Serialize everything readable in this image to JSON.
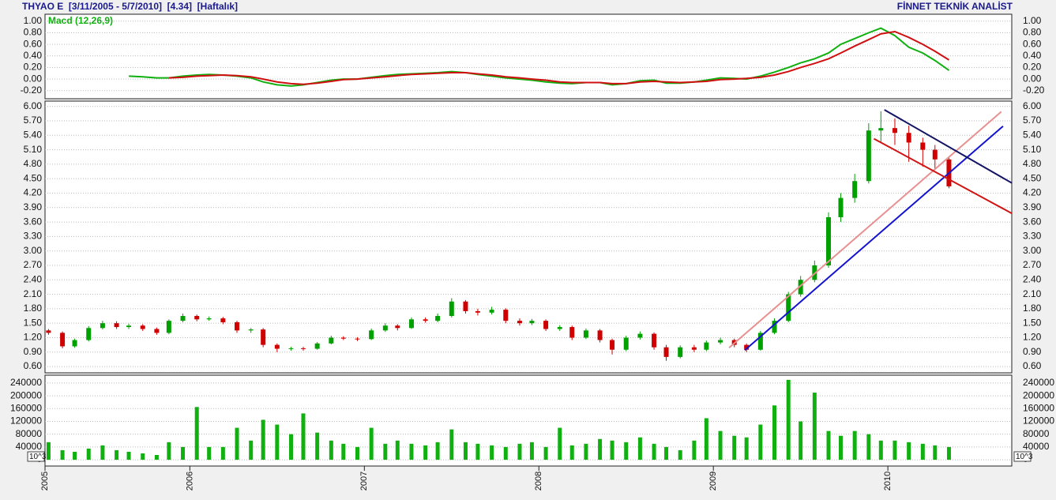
{
  "chart_data": {
    "type": "candlestick",
    "title": "THYAO E  [3/11/2005 - 5/7/2010]  [4.34]  [Haftalık]",
    "source": "FİNNET TEKNİK ANALİST",
    "xlim": [
      2005.17,
      2010.71
    ],
    "xticks": [
      {
        "value": 2005.17,
        "label": "2005"
      },
      2006,
      2007,
      2008,
      2009,
      2010
    ],
    "x": [
      2005.19,
      2005.27,
      2005.34,
      2005.42,
      2005.5,
      2005.58,
      2005.65,
      2005.73,
      2005.81,
      2005.88,
      2005.96,
      2006.04,
      2006.11,
      2006.19,
      2006.27,
      2006.35,
      2006.42,
      2006.5,
      2006.58,
      2006.65,
      2006.73,
      2006.81,
      2006.88,
      2006.96,
      2007.04,
      2007.12,
      2007.19,
      2007.27,
      2007.35,
      2007.42,
      2007.5,
      2007.58,
      2007.65,
      2007.73,
      2007.81,
      2007.89,
      2007.96,
      2008.04,
      2008.12,
      2008.19,
      2008.27,
      2008.35,
      2008.42,
      2008.5,
      2008.58,
      2008.66,
      2008.73,
      2008.81,
      2008.89,
      2008.96,
      2009.04,
      2009.12,
      2009.19,
      2009.27,
      2009.35,
      2009.43,
      2009.5,
      2009.58,
      2009.66,
      2009.73,
      2009.81,
      2009.89,
      2009.96,
      2010.04,
      2010.12,
      2010.2,
      2010.27,
      2010.35
    ],
    "open": [
      1.35,
      1.3,
      1.02,
      1.15,
      1.4,
      1.5,
      1.42,
      1.45,
      1.38,
      1.3,
      1.55,
      1.65,
      1.58,
      1.6,
      1.52,
      1.35,
      1.37,
      1.05,
      0.97,
      0.98,
      0.97,
      1.08,
      1.2,
      1.18,
      1.17,
      1.35,
      1.45,
      1.4,
      1.58,
      1.55,
      1.65,
      1.95,
      1.75,
      1.72,
      1.78,
      1.55,
      1.5,
      1.55,
      1.38,
      1.42,
      1.2,
      1.35,
      1.15,
      0.95,
      1.2,
      1.28,
      1.0,
      0.8,
      1.0,
      0.95,
      1.1,
      1.15,
      1.05,
      0.95,
      1.3,
      1.55,
      2.1,
      2.4,
      2.7,
      3.7,
      4.1,
      4.45,
      5.5,
      5.55,
      5.45,
      5.25,
      5.1,
      4.9
    ],
    "high": [
      1.38,
      1.33,
      1.18,
      1.44,
      1.55,
      1.54,
      1.49,
      1.48,
      1.41,
      1.58,
      1.7,
      1.68,
      1.64,
      1.63,
      1.55,
      1.4,
      1.4,
      1.08,
      1.01,
      1.01,
      1.11,
      1.24,
      1.23,
      1.21,
      1.39,
      1.5,
      1.48,
      1.62,
      1.62,
      1.7,
      2.02,
      1.98,
      1.8,
      1.84,
      1.81,
      1.6,
      1.59,
      1.58,
      1.46,
      1.45,
      1.39,
      1.38,
      1.18,
      1.24,
      1.33,
      1.31,
      1.05,
      1.04,
      1.05,
      1.14,
      1.2,
      1.18,
      1.08,
      1.34,
      1.6,
      2.15,
      2.48,
      2.8,
      3.8,
      4.2,
      4.6,
      5.65,
      5.9,
      5.75,
      5.6,
      5.35,
      5.2,
      4.95
    ],
    "low": [
      1.26,
      0.98,
      0.99,
      1.12,
      1.37,
      1.38,
      1.38,
      1.34,
      1.26,
      1.27,
      1.52,
      1.54,
      1.55,
      1.48,
      1.3,
      1.3,
      1.0,
      0.9,
      0.93,
      0.93,
      0.95,
      1.06,
      1.15,
      1.13,
      1.15,
      1.32,
      1.35,
      1.38,
      1.51,
      1.52,
      1.62,
      1.7,
      1.66,
      1.68,
      1.5,
      1.45,
      1.46,
      1.34,
      1.34,
      1.15,
      1.17,
      1.1,
      0.85,
      0.92,
      1.16,
      0.95,
      0.72,
      0.77,
      0.9,
      0.92,
      1.06,
      1.0,
      0.9,
      0.93,
      1.27,
      1.52,
      2.05,
      2.35,
      2.65,
      3.6,
      4.0,
      4.4,
      5.25,
      5.2,
      4.85,
      4.75,
      4.7,
      4.3
    ],
    "close": [
      1.3,
      1.02,
      1.15,
      1.4,
      1.5,
      1.42,
      1.45,
      1.38,
      1.3,
      1.55,
      1.65,
      1.58,
      1.6,
      1.52,
      1.35,
      1.37,
      1.05,
      0.97,
      0.98,
      0.97,
      1.08,
      1.2,
      1.18,
      1.17,
      1.35,
      1.45,
      1.4,
      1.58,
      1.55,
      1.65,
      1.95,
      1.75,
      1.72,
      1.78,
      1.55,
      1.5,
      1.55,
      1.38,
      1.42,
      1.2,
      1.35,
      1.15,
      0.95,
      1.2,
      1.28,
      1.0,
      0.8,
      1.0,
      0.95,
      1.1,
      1.15,
      1.05,
      0.95,
      1.3,
      1.55,
      2.1,
      2.4,
      2.7,
      3.7,
      4.1,
      4.45,
      5.5,
      5.55,
      5.45,
      5.25,
      5.1,
      4.9,
      4.34
    ],
    "up_color": "#00a000",
    "down_color": "#d00000",
    "ylim": [
      0.47,
      6.11
    ],
    "yticks": [
      {
        "value": 0.6,
        "label": "0.60"
      },
      {
        "value": 0.9,
        "label": "0.90"
      },
      {
        "value": 1.2,
        "label": "1.20"
      },
      {
        "value": 1.5,
        "label": "1.50"
      },
      {
        "value": 1.8,
        "label": "1.80"
      },
      {
        "value": 2.1,
        "label": "2.10"
      },
      {
        "value": 2.4,
        "label": "2.40"
      },
      {
        "value": 2.7,
        "label": "2.70"
      },
      {
        "value": 3.0,
        "label": "3.00"
      },
      {
        "value": 3.3,
        "label": "3.30"
      },
      {
        "value": 3.6,
        "label": "3.60"
      },
      {
        "value": 3.9,
        "label": "3.90"
      },
      {
        "value": 4.2,
        "label": "4.20"
      },
      {
        "value": 4.5,
        "label": "4.50"
      },
      {
        "value": 4.8,
        "label": "4.80"
      },
      {
        "value": 5.1,
        "label": "5.10"
      },
      {
        "value": 5.4,
        "label": "5.40"
      },
      {
        "value": 5.7,
        "label": "5.70"
      },
      {
        "value": 6.0,
        "label": "6.00"
      }
    ],
    "grid": true,
    "trendlines": [
      {
        "x": [
          2009.09,
          2010.65
        ],
        "y": [
          0.99,
          5.89
        ],
        "color": "#e89090"
      },
      {
        "x": [
          2009.18,
          2010.66
        ],
        "y": [
          0.94,
          5.59
        ],
        "color": "#1414d0"
      },
      {
        "x": [
          2009.98,
          2010.71
        ],
        "y": [
          5.93,
          4.41
        ],
        "color": "#141464"
      },
      {
        "x": [
          2009.92,
          2010.71
        ],
        "y": [
          5.33,
          3.78
        ],
        "color": "#d01414"
      }
    ],
    "indicator": {
      "type": "line",
      "title": "Macd (12,26,9)",
      "ylim": [
        -0.34,
        1.12
      ],
      "yticks": [
        {
          "value": -0.2,
          "label": "-0.20"
        },
        {
          "value": 0,
          "label": "0.00"
        },
        {
          "value": 0.2,
          "label": "0.20"
        },
        {
          "value": 0.4,
          "label": "0.40"
        },
        {
          "value": 0.6,
          "label": "0.60"
        },
        {
          "value": 0.8,
          "label": "0.80"
        },
        {
          "value": 1.0,
          "label": "1.00"
        }
      ],
      "series": [
        {
          "color": "#10b010",
          "values": [
            null,
            null,
            null,
            null,
            null,
            null,
            0.05,
            0.04,
            0.02,
            0.02,
            0.05,
            0.07,
            0.08,
            0.07,
            0.05,
            0.02,
            -0.05,
            -0.1,
            -0.12,
            -0.1,
            -0.06,
            -0.02,
            0.0,
            0.0,
            0.03,
            0.06,
            0.08,
            0.09,
            0.1,
            0.11,
            0.13,
            0.11,
            0.08,
            0.05,
            0.02,
            0.0,
            -0.02,
            -0.05,
            -0.07,
            -0.08,
            -0.06,
            -0.06,
            -0.1,
            -0.08,
            -0.03,
            -0.02,
            -0.07,
            -0.07,
            -0.05,
            -0.02,
            0.02,
            0.01,
            0.0,
            0.05,
            0.12,
            0.2,
            0.28,
            0.35,
            0.45,
            0.6,
            0.7,
            0.8,
            0.88,
            0.75,
            0.55,
            0.45,
            0.32,
            0.15
          ]
        },
        {
          "color": "#d01010",
          "values": [
            null,
            null,
            null,
            null,
            null,
            null,
            null,
            null,
            null,
            0.02,
            0.03,
            0.05,
            0.06,
            0.07,
            0.06,
            0.04,
            0.0,
            -0.05,
            -0.08,
            -0.09,
            -0.07,
            -0.04,
            -0.01,
            0.0,
            0.02,
            0.04,
            0.06,
            0.08,
            0.09,
            0.1,
            0.11,
            0.11,
            0.09,
            0.07,
            0.04,
            0.02,
            0.0,
            -0.02,
            -0.05,
            -0.06,
            -0.06,
            -0.06,
            -0.08,
            -0.08,
            -0.05,
            -0.04,
            -0.05,
            -0.06,
            -0.05,
            -0.04,
            -0.01,
            0.0,
            0.01,
            0.03,
            0.07,
            0.13,
            0.2,
            0.27,
            0.35,
            0.45,
            0.57,
            0.68,
            0.78,
            0.82,
            0.72,
            0.6,
            0.48,
            0.33
          ]
        }
      ]
    },
    "volume": {
      "type": "bar",
      "color": "#10b010",
      "unit_label": "10^3",
      "ylim": [
        -19600,
        264500
      ],
      "yticks": [
        0,
        40000,
        80000,
        120000,
        160000,
        200000,
        240000
      ],
      "values": [
        55000,
        30000,
        25000,
        35000,
        45000,
        30000,
        25000,
        20000,
        15000,
        55000,
        40000,
        165000,
        40000,
        40000,
        100000,
        60000,
        125000,
        110000,
        80000,
        145000,
        85000,
        60000,
        50000,
        40000,
        100000,
        50000,
        60000,
        50000,
        45000,
        55000,
        95000,
        55000,
        50000,
        45000,
        40000,
        50000,
        55000,
        40000,
        100000,
        45000,
        50000,
        65000,
        60000,
        55000,
        70000,
        50000,
        40000,
        30000,
        60000,
        130000,
        90000,
        75000,
        70000,
        110000,
        170000,
        250000,
        120000,
        210000,
        90000,
        75000,
        90000,
        80000,
        60000,
        60000,
        55000,
        50000,
        45000,
        40000
      ]
    }
  }
}
